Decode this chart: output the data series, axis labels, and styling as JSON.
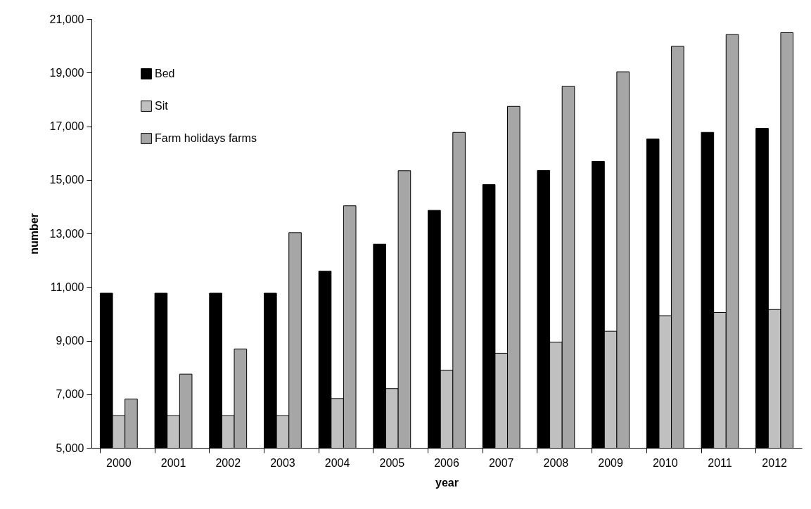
{
  "chart_data": {
    "type": "bar",
    "xlabel": "year",
    "ylabel": "number",
    "categories": [
      "2000",
      "2001",
      "2002",
      "2003",
      "2004",
      "2005",
      "2006",
      "2007",
      "2008",
      "2009",
      "2010",
      "2011",
      "2012"
    ],
    "series": [
      {
        "name": "Bed",
        "color": "#000000",
        "values": [
          10770,
          10770,
          10770,
          10770,
          11590,
          12600,
          13860,
          14820,
          15350,
          15690,
          16520,
          16770,
          16920
        ]
      },
      {
        "name": "Sit",
        "color": "#c0c0c0",
        "values": [
          6200,
          6200,
          6200,
          6200,
          6840,
          7210,
          7900,
          8530,
          8940,
          9350,
          9930,
          10050,
          10160
        ]
      },
      {
        "name": "Farm holidays farms",
        "color": "#a6a6a6",
        "values": [
          6820,
          7750,
          8690,
          13030,
          14030,
          15340,
          16770,
          17740,
          18490,
          19030,
          19980,
          20420,
          20490
        ]
      }
    ],
    "ylim": [
      5000,
      21000
    ],
    "yticks": [
      {
        "value": 5000,
        "label": "5,000"
      },
      {
        "value": 7000,
        "label": "7,000"
      },
      {
        "value": 9000,
        "label": "9,000"
      },
      {
        "value": 11000,
        "label": "11,000"
      },
      {
        "value": 13000,
        "label": "13,000"
      },
      {
        "value": 15000,
        "label": "15,000"
      },
      {
        "value": 17000,
        "label": "17,000"
      },
      {
        "value": 19000,
        "label": "19,000"
      },
      {
        "value": 21000,
        "label": "21,000"
      }
    ],
    "legend": "top left"
  }
}
